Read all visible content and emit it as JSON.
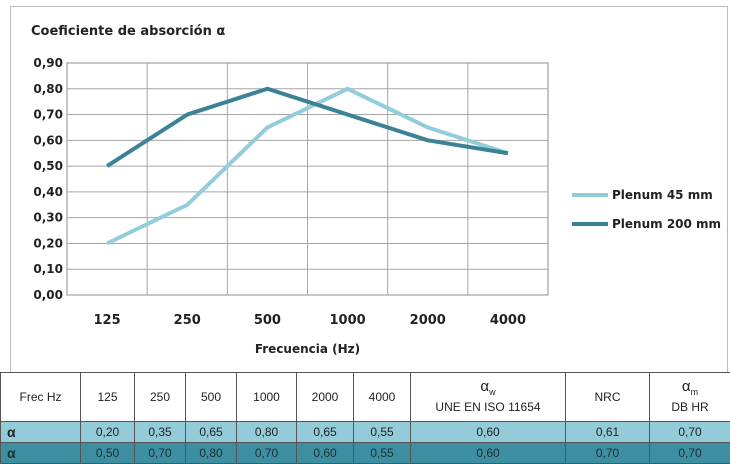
{
  "chart_data": {
    "type": "line",
    "title": "Coeficiente de absorción α",
    "xlabel": "Frecuencia (Hz)",
    "ylabel": "",
    "categories": [
      "125",
      "250",
      "500",
      "1000",
      "2000",
      "4000"
    ],
    "ylim": [
      0,
      0.9
    ],
    "yticks": [
      "0,00",
      "0,10",
      "0,20",
      "0,30",
      "0,40",
      "0,50",
      "0,60",
      "0,70",
      "0,80",
      "0,90"
    ],
    "grid": true,
    "legend_position": "right",
    "series": [
      {
        "name": "Plenum 45 mm",
        "color": "#93cddc",
        "values": [
          0.2,
          0.35,
          0.65,
          0.8,
          0.65,
          0.55
        ]
      },
      {
        "name": "Plenum 200 mm",
        "color": "#3b8297",
        "values": [
          0.5,
          0.7,
          0.8,
          0.7,
          0.6,
          0.55
        ]
      }
    ]
  },
  "table": {
    "header": {
      "label": "Frec Hz",
      "freqs": [
        "125",
        "250",
        "500",
        "1000",
        "2000",
        "4000"
      ],
      "aw_symbol": "α",
      "aw_sub": "w",
      "aw_norm": "UNE EN ISO 11654",
      "nrc": "NRC",
      "am_symbol": "α",
      "am_sub": "m",
      "am_norm": "DB HR"
    },
    "rows": [
      {
        "label": "α",
        "values": [
          "0,20",
          "0,35",
          "0,65",
          "0,80",
          "0,65",
          "0,55"
        ],
        "aw": "0,60",
        "nrc": "0,61",
        "am": "0,70"
      },
      {
        "label": "α",
        "values": [
          "0,50",
          "0,70",
          "0,80",
          "0,70",
          "0,60",
          "0,55"
        ],
        "aw": "0,60",
        "nrc": "0,70",
        "am": "0,70"
      }
    ]
  }
}
